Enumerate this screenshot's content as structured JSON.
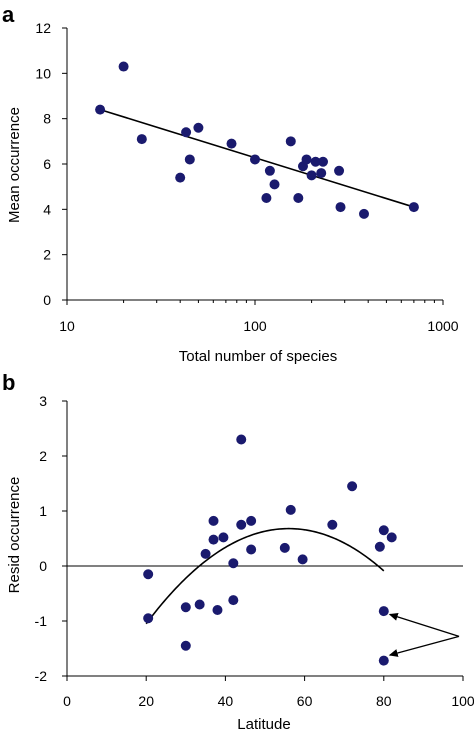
{
  "chart_data": [
    {
      "panel_label": "a",
      "type": "scatter",
      "xlabel": "Total number of species",
      "ylabel": "Mean occurrence",
      "xscale": "log",
      "xlim": [
        10,
        1000
      ],
      "ylim": [
        0,
        12
      ],
      "x_ticks": [
        10,
        100,
        1000
      ],
      "y_ticks": [
        0,
        2,
        4,
        6,
        8,
        10,
        12
      ],
      "x_tick_labels": [
        "10",
        "100",
        "1000"
      ],
      "y_tick_labels": [
        "0",
        "2",
        "4",
        "6",
        "8",
        "10",
        "12"
      ],
      "grid": false,
      "point_color": "#1a1a6e",
      "points": [
        {
          "x": 15,
          "y": 8.4
        },
        {
          "x": 20,
          "y": 10.3
        },
        {
          "x": 25,
          "y": 7.1
        },
        {
          "x": 40,
          "y": 5.4
        },
        {
          "x": 43,
          "y": 7.4
        },
        {
          "x": 45,
          "y": 6.2
        },
        {
          "x": 50,
          "y": 7.6
        },
        {
          "x": 75,
          "y": 6.9
        },
        {
          "x": 100,
          "y": 6.2
        },
        {
          "x": 115,
          "y": 4.5
        },
        {
          "x": 120,
          "y": 5.7
        },
        {
          "x": 127,
          "y": 5.1
        },
        {
          "x": 155,
          "y": 7.0
        },
        {
          "x": 170,
          "y": 4.5
        },
        {
          "x": 180,
          "y": 5.9
        },
        {
          "x": 188,
          "y": 6.2
        },
        {
          "x": 200,
          "y": 5.5
        },
        {
          "x": 210,
          "y": 6.1
        },
        {
          "x": 225,
          "y": 5.6
        },
        {
          "x": 230,
          "y": 6.1
        },
        {
          "x": 280,
          "y": 5.7
        },
        {
          "x": 285,
          "y": 4.1
        },
        {
          "x": 380,
          "y": 3.8
        },
        {
          "x": 700,
          "y": 4.1
        }
      ],
      "trend_line": {
        "type": "linear-in-log-x",
        "points": [
          [
            15,
            8.4
          ],
          [
            700,
            4.1
          ]
        ]
      }
    },
    {
      "panel_label": "b",
      "type": "scatter",
      "xlabel": "Latitude",
      "ylabel": "Resid occurrence",
      "xlim": [
        0,
        100
      ],
      "ylim": [
        -2,
        3
      ],
      "x_ticks": [
        0,
        20,
        40,
        60,
        80,
        100
      ],
      "y_ticks": [
        -2,
        -1,
        0,
        1,
        2,
        3
      ],
      "x_tick_labels": [
        "0",
        "20",
        "40",
        "60",
        "80",
        "100"
      ],
      "y_tick_labels": [
        "-2",
        "-1",
        "0",
        "1",
        "2",
        "3"
      ],
      "grid": false,
      "zero_line": true,
      "point_color": "#1a1a6e",
      "points": [
        {
          "x": 20.5,
          "y": -0.15
        },
        {
          "x": 20.5,
          "y": -0.95
        },
        {
          "x": 30,
          "y": -0.75
        },
        {
          "x": 30,
          "y": -1.45
        },
        {
          "x": 33.5,
          "y": -0.7
        },
        {
          "x": 35,
          "y": 0.22
        },
        {
          "x": 37,
          "y": 0.48
        },
        {
          "x": 37,
          "y": 0.82
        },
        {
          "x": 38,
          "y": -0.8
        },
        {
          "x": 39.5,
          "y": 0.52
        },
        {
          "x": 42,
          "y": 0.05
        },
        {
          "x": 42,
          "y": -0.62
        },
        {
          "x": 44,
          "y": 0.75
        },
        {
          "x": 44,
          "y": 2.3
        },
        {
          "x": 46.5,
          "y": 0.3
        },
        {
          "x": 46.5,
          "y": 0.82
        },
        {
          "x": 55,
          "y": 0.33
        },
        {
          "x": 56.5,
          "y": 1.02
        },
        {
          "x": 59.5,
          "y": 0.12
        },
        {
          "x": 67,
          "y": 0.75
        },
        {
          "x": 72,
          "y": 1.45
        },
        {
          "x": 79,
          "y": 0.35
        },
        {
          "x": 80,
          "y": 0.65
        },
        {
          "x": 80,
          "y": -0.82
        },
        {
          "x": 80,
          "y": -1.72
        },
        {
          "x": 82,
          "y": 0.52
        }
      ],
      "curve": {
        "type": "quadratic",
        "x_range": [
          20,
          80
        ],
        "vertex": [
          56,
          0.68
        ],
        "y_at_20": -1.05
      },
      "arrows": [
        {
          "from": [
            99,
            -1.28
          ],
          "to": [
            81.5,
            -0.88
          ]
        },
        {
          "from": [
            99,
            -1.28
          ],
          "to": [
            81.5,
            -1.62
          ]
        }
      ]
    }
  ]
}
